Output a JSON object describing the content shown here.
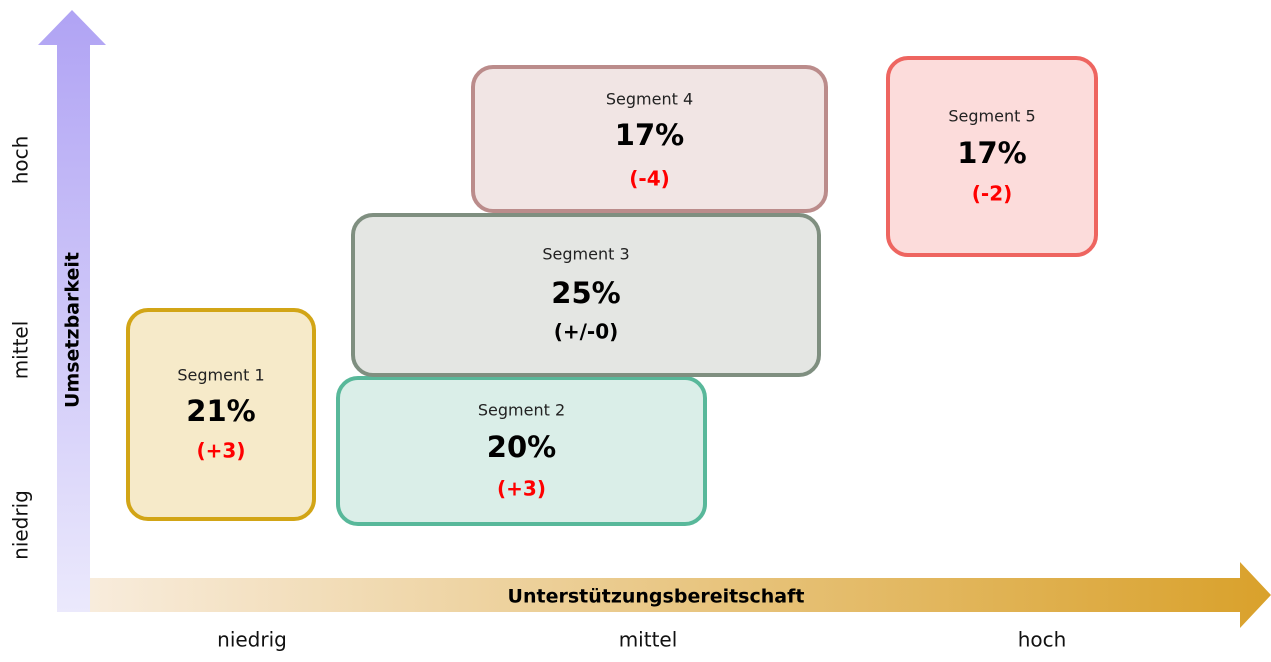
{
  "x_axis": {
    "title": "Unterstützungsbereitschaft",
    "levels": [
      "niedrig",
      "mittel",
      "hoch"
    ]
  },
  "y_axis": {
    "title": "Umsetzbarkeit",
    "levels": [
      "niedrig",
      "mittel",
      "hoch"
    ]
  },
  "segments": [
    {
      "name": "Segment 1",
      "share": "21%",
      "change": "(+3)"
    },
    {
      "name": "Segment 2",
      "share": "20%",
      "change": "(+3)"
    },
    {
      "name": "Segment 3",
      "share": "25%",
      "change": "(+/-0)"
    },
    {
      "name": "Segment 4",
      "share": "17%",
      "change": "(-4)"
    },
    {
      "name": "Segment 5",
      "share": "17%",
      "change": "(-2)"
    }
  ]
}
